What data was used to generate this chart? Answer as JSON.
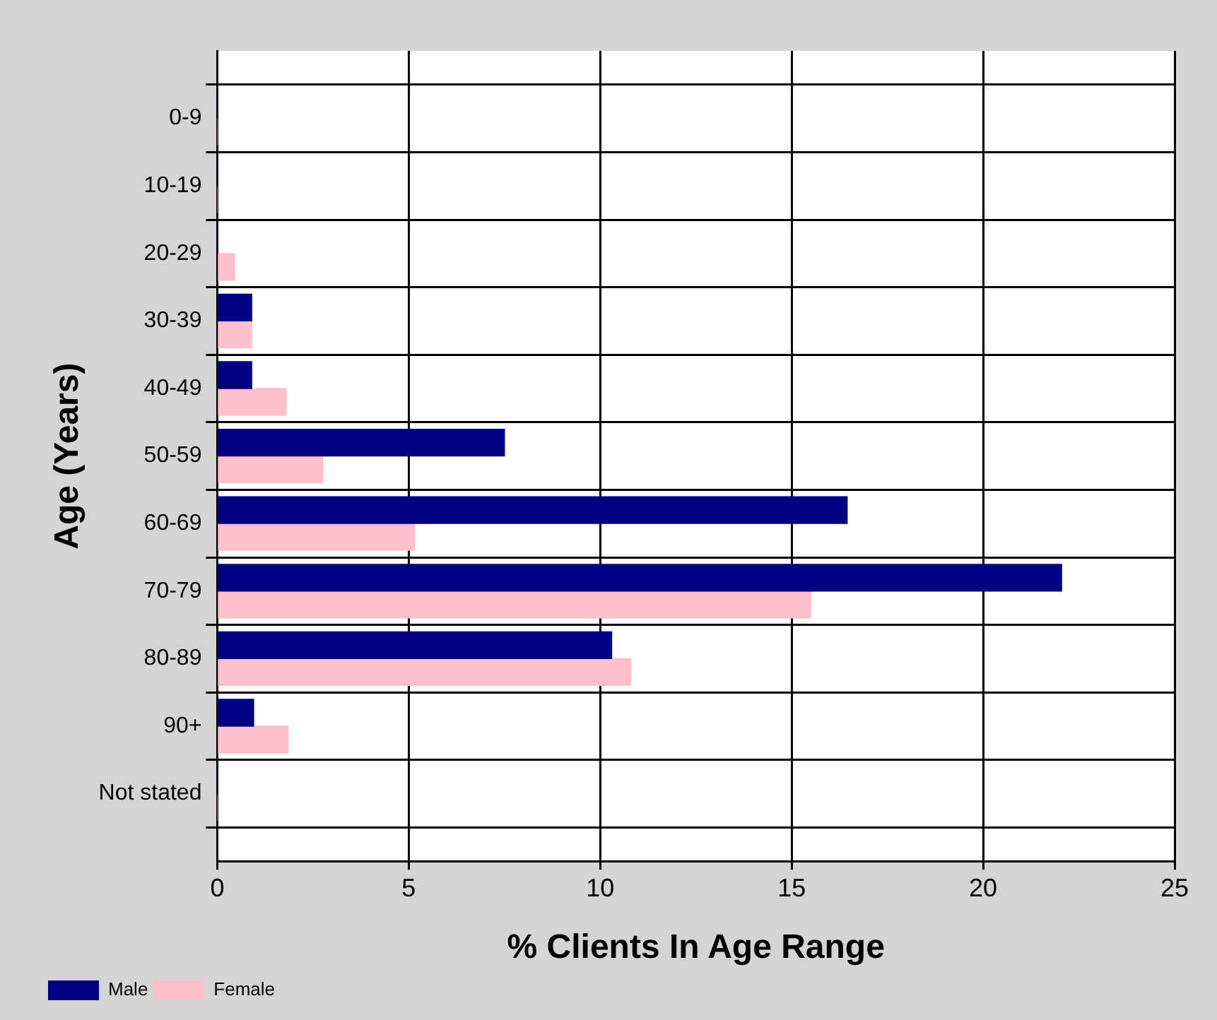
{
  "chart_data": {
    "type": "bar",
    "orientation": "horizontal",
    "xlabel": "% Clients In Age Range",
    "ylabel": "Age (Years)",
    "categories": [
      "0-9",
      "10-19",
      "20-29",
      "30-39",
      "40-49",
      "50-59",
      "60-69",
      "70-79",
      "80-89",
      "90+",
      "Not stated"
    ],
    "series": [
      {
        "name": "Male",
        "color": "#000080",
        "values": [
          0,
          0,
          0,
          0.9,
          0.9,
          7.5,
          16.45,
          22.05,
          10.3,
          0.95,
          0
        ]
      },
      {
        "name": "Female",
        "color": "#ffc0cb",
        "values": [
          0,
          0,
          0.45,
          0.9,
          1.8,
          2.75,
          5.15,
          15.5,
          10.8,
          1.85,
          0
        ]
      }
    ],
    "xlim": [
      0,
      25
    ],
    "xticks": [
      0,
      5,
      10,
      15,
      20,
      25
    ],
    "grid": true,
    "legend": "bottom left"
  }
}
